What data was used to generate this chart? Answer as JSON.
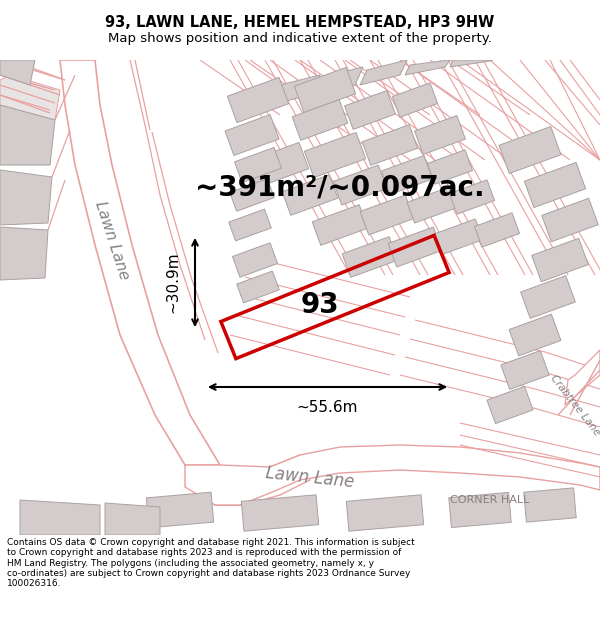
{
  "title": "93, LAWN LANE, HEMEL HEMPSTEAD, HP3 9HW",
  "subtitle": "Map shows position and indicative extent of the property.",
  "area_text": "~391m²/~0.097ac.",
  "label_93": "93",
  "dim_width": "~55.6m",
  "dim_height": "~30.9m",
  "label_lawn_lane_diag": "Lawn Lane",
  "label_lawn_lane_horiz": "Lawn Lane",
  "label_crabtree": "Crabtree Lane",
  "label_corner_hall": "CORNER HALL",
  "footer": "Contains OS data © Crown copyright and database right 2021. This information is subject\nto Crown copyright and database rights 2023 and is reproduced with the permission of\nHM Land Registry. The polygons (including the associated geometry, namely x, y\nco-ordinates) are subject to Crown copyright and database rights 2023 Ordnance Survey\n100026316.",
  "map_bg": "#f2eeee",
  "road_fill": "#ffffff",
  "building_fill": "#d4cccc",
  "red_line": "#cc0000",
  "red_light": "#e8a0a0",
  "footer_bg": "#ffffff",
  "title_bg": "#ffffff",
  "title_fontsize": 10.5,
  "subtitle_fontsize": 9.5,
  "area_fontsize": 20,
  "label_fontsize": 20,
  "dim_fontsize": 11,
  "road_label_fontsize": 11
}
